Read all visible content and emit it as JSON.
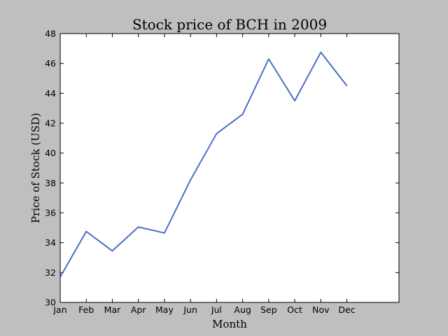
{
  "chart_data": {
    "type": "line",
    "title": "Stock price of BCH in 2009",
    "xlabel": "Month",
    "ylabel": "Price of Stock (USD)",
    "categories": [
      "Jan",
      "Feb",
      "Mar",
      "Apr",
      "May",
      "Jun",
      "Jul",
      "Aug",
      "Sep",
      "Oct",
      "Nov",
      "Dec"
    ],
    "series": [
      {
        "values": [
          31.7,
          34.75,
          33.45,
          35.05,
          34.65,
          38.2,
          41.3,
          42.6,
          46.3,
          43.5,
          46.75,
          44.5
        ]
      }
    ],
    "ylim": [
      30,
      48
    ],
    "yticks": [
      30,
      32,
      34,
      36,
      38,
      40,
      42,
      44,
      46,
      48
    ],
    "x_categories_span": 13,
    "grid": false,
    "line_color": "#4a6fc7",
    "background_color": "#bfbfbf",
    "plot_background_color": "#ffffff"
  }
}
